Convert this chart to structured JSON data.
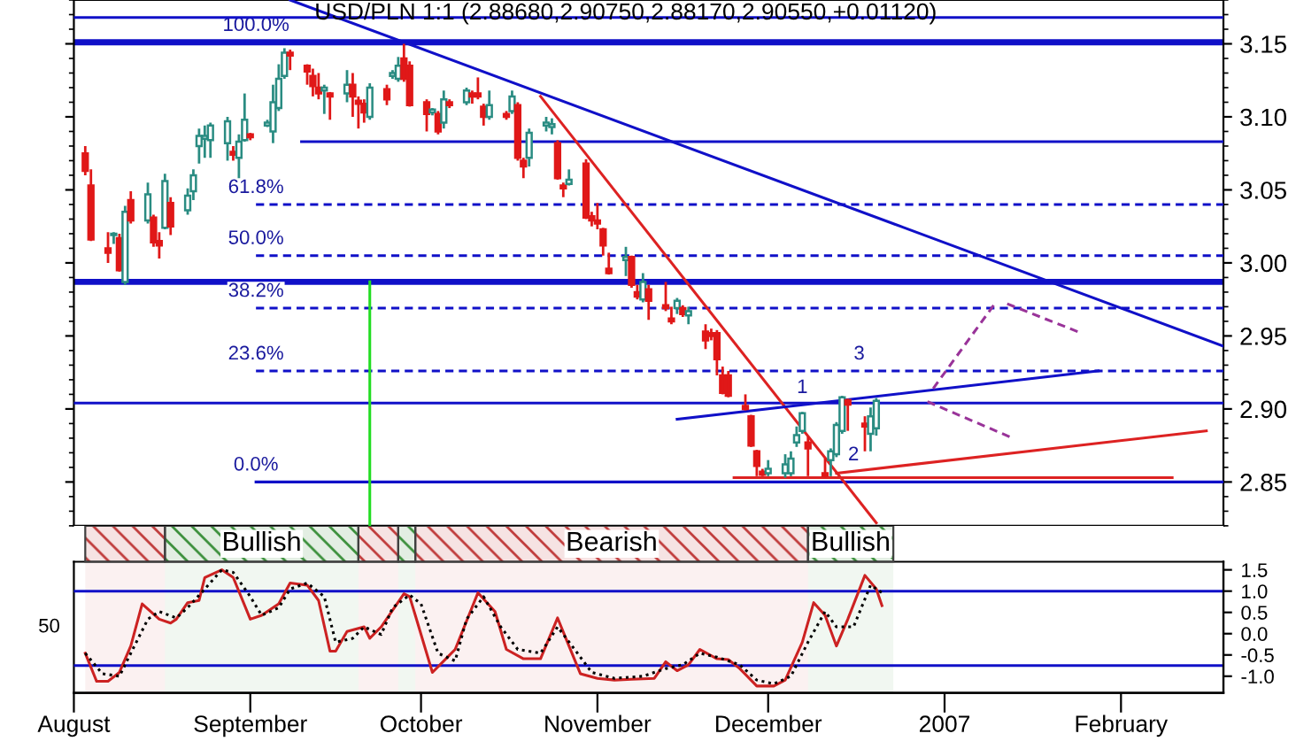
{
  "chart_data": [
    {
      "type": "candlestick",
      "title": "USD/PLN 1:1 (2.88680,2.90750,2.88170,2.90550,+0.01120)",
      "x": [
        "2006-08-03",
        "2006-08-04",
        "2006-08-07",
        "2006-08-08",
        "2006-08-09",
        "2006-08-10",
        "2006-08-11",
        "2006-08-14",
        "2006-08-15",
        "2006-08-16",
        "2006-08-17",
        "2006-08-18",
        "2006-08-21",
        "2006-08-22",
        "2006-08-23",
        "2006-08-24",
        "2006-08-25",
        "2006-08-28",
        "2006-08-29",
        "2006-08-30",
        "2006-08-31",
        "2006-09-01",
        "2006-09-04",
        "2006-09-05",
        "2006-09-06",
        "2006-09-07",
        "2006-09-08",
        "2006-09-11",
        "2006-09-12",
        "2006-09-13",
        "2006-09-14",
        "2006-09-15",
        "2006-09-18",
        "2006-09-19",
        "2006-09-20",
        "2006-09-21",
        "2006-09-22",
        "2006-09-25",
        "2006-09-26",
        "2006-09-27",
        "2006-09-28",
        "2006-09-29",
        "2006-10-02",
        "2006-10-03",
        "2006-10-04",
        "2006-10-05",
        "2006-10-06",
        "2006-10-09",
        "2006-10-10",
        "2006-10-11",
        "2006-10-12",
        "2006-10-13",
        "2006-10-16",
        "2006-10-17",
        "2006-10-18",
        "2006-10-19",
        "2006-10-20",
        "2006-10-23",
        "2006-10-24",
        "2006-10-25",
        "2006-10-26",
        "2006-10-27",
        "2006-10-30",
        "2006-10-31",
        "2006-11-01",
        "2006-11-02",
        "2006-11-03",
        "2006-11-06",
        "2006-11-07",
        "2006-11-08",
        "2006-11-09",
        "2006-11-10",
        "2006-11-13",
        "2006-11-14",
        "2006-11-15",
        "2006-11-16",
        "2006-11-17",
        "2006-11-20",
        "2006-11-21",
        "2006-11-22",
        "2006-11-23",
        "2006-11-24",
        "2006-11-27",
        "2006-11-28",
        "2006-11-29",
        "2006-11-30",
        "2006-12-01",
        "2006-12-04",
        "2006-12-05",
        "2006-12-06",
        "2006-12-07",
        "2006-12-08",
        "2006-12-11",
        "2006-12-12",
        "2006-12-13",
        "2006-12-14",
        "2006-12-15",
        "2006-12-18",
        "2006-12-19",
        "2006-12-20"
      ],
      "ohlc": [
        [
          3.075,
          3.08,
          3.06,
          3.063
        ],
        [
          3.053,
          3.064,
          3.015,
          3.016
        ],
        [
          3.01,
          3.021,
          3.0,
          3.007
        ],
        [
          3.019,
          3.021,
          3.013,
          3.02
        ],
        [
          3.017,
          3.02,
          2.994,
          2.995
        ],
        [
          2.987,
          3.039,
          2.985,
          3.035
        ],
        [
          3.043,
          3.049,
          3.027,
          3.029
        ],
        [
          3.029,
          3.055,
          3.027,
          3.047
        ],
        [
          3.031,
          3.033,
          3.011,
          3.014
        ],
        [
          3.015,
          3.021,
          3.003,
          3.012
        ],
        [
          3.024,
          3.061,
          3.023,
          3.056
        ],
        [
          3.041,
          3.045,
          3.019,
          3.025
        ],
        [
          3.036,
          3.051,
          3.033,
          3.046
        ],
        [
          3.049,
          3.064,
          3.043,
          3.06
        ],
        [
          3.08,
          3.092,
          3.068,
          3.087
        ],
        [
          3.085,
          3.094,
          3.072,
          3.087
        ],
        [
          3.084,
          3.096,
          3.072,
          3.094
        ],
        [
          3.082,
          3.1,
          3.07,
          3.097
        ],
        [
          3.076,
          3.08,
          3.07,
          3.074
        ],
        [
          3.072,
          3.088,
          3.058,
          3.083
        ],
        [
          3.084,
          3.116,
          3.083,
          3.098
        ],
        [
          3.088,
          3.089,
          3.084,
          3.086
        ],
        [
          3.094,
          3.098,
          3.093,
          3.096
        ],
        [
          3.09,
          3.122,
          3.082,
          3.11
        ],
        [
          3.106,
          3.136,
          3.104,
          3.126
        ],
        [
          3.128,
          3.147,
          3.126,
          3.144
        ],
        [
          3.144,
          3.146,
          3.132,
          3.142
        ],
        [
          3.135,
          3.136,
          3.122,
          3.131
        ],
        [
          3.128,
          3.133,
          3.114,
          3.121
        ],
        [
          3.12,
          3.13,
          3.112,
          3.116
        ],
        [
          3.118,
          3.122,
          3.102,
          3.12
        ],
        [
          3.116,
          3.117,
          3.098,
          3.114
        ],
        [
          3.116,
          3.132,
          3.11,
          3.122
        ],
        [
          3.122,
          3.13,
          3.1,
          3.114
        ],
        [
          3.111,
          3.114,
          3.092,
          3.109
        ],
        [
          3.109,
          3.112,
          3.096,
          3.103
        ],
        [
          3.1,
          3.123,
          3.098,
          3.12
        ],
        [
          3.119,
          3.122,
          3.108,
          3.112
        ],
        [
          3.128,
          3.132,
          3.126,
          3.13
        ],
        [
          3.126,
          3.141,
          3.124,
          3.135
        ],
        [
          3.14,
          3.15,
          3.124,
          3.126
        ],
        [
          3.135,
          3.138,
          3.107,
          3.108
        ],
        [
          3.11,
          3.112,
          3.09,
          3.102
        ],
        [
          3.103,
          3.106,
          3.101,
          3.105
        ],
        [
          3.102,
          3.104,
          3.088,
          3.09
        ],
        [
          3.096,
          3.118,
          3.092,
          3.112
        ],
        [
          3.11,
          3.112,
          3.106,
          3.108
        ],
        [
          3.11,
          3.12,
          3.108,
          3.118
        ],
        [
          3.116,
          3.118,
          3.109,
          3.114
        ],
        [
          3.116,
          3.127,
          3.112,
          3.114
        ],
        [
          3.107,
          3.109,
          3.094,
          3.1
        ],
        [
          3.1,
          3.118,
          3.098,
          3.108
        ],
        [
          3.102,
          3.104,
          3.098,
          3.1
        ],
        [
          3.104,
          3.118,
          3.102,
          3.114
        ],
        [
          3.108,
          3.11,
          3.07,
          3.072
        ],
        [
          3.07,
          3.072,
          3.058,
          3.066
        ],
        [
          3.072,
          3.092,
          3.066,
          3.089
        ],
        [
          3.094,
          3.1,
          3.09,
          3.096
        ],
        [
          3.093,
          3.099,
          3.088,
          3.095
        ],
        [
          3.082,
          3.084,
          3.057,
          3.058
        ],
        [
          3.053,
          3.055,
          3.045,
          3.051
        ],
        [
          3.054,
          3.064,
          3.053,
          3.057
        ],
        [
          3.068,
          3.071,
          3.03,
          3.031
        ],
        [
          3.032,
          3.035,
          3.025,
          3.029
        ],
        [
          3.029,
          3.041,
          3.023,
          3.027
        ],
        [
          3.023,
          3.024,
          3.005,
          3.012
        ],
        [
          2.996,
          3.007,
          2.992,
          2.993
        ],
        [
          3.002,
          3.011,
          2.991,
          3.004
        ],
        [
          3.004,
          3.005,
          2.983,
          2.985
        ],
        [
          2.98,
          2.985,
          2.975,
          2.977
        ],
        [
          2.975,
          2.993,
          2.973,
          2.987
        ],
        [
          2.982,
          2.985,
          2.961,
          2.974
        ],
        [
          2.971,
          2.987,
          2.967,
          2.969
        ],
        [
          2.962,
          2.97,
          2.958,
          2.96
        ],
        [
          2.969,
          2.976,
          2.965,
          2.974
        ],
        [
          2.969,
          2.971,
          2.963,
          2.965
        ],
        [
          2.964,
          2.97,
          2.958,
          2.967
        ],
        [
          2.953,
          2.958,
          2.941,
          2.947
        ],
        [
          2.952,
          2.955,
          2.947,
          2.95
        ],
        [
          2.952,
          2.954,
          2.923,
          2.934
        ],
        [
          2.923,
          2.929,
          2.91,
          2.911
        ],
        [
          2.923,
          2.926,
          2.908,
          2.909
        ],
        [
          2.902,
          2.91,
          2.899,
          2.9
        ],
        [
          2.895,
          2.896,
          2.874,
          2.875
        ],
        [
          2.871,
          2.872,
          2.854,
          2.861
        ],
        [
          2.857,
          2.859,
          2.854,
          2.855
        ],
        [
          2.856,
          2.865,
          2.854,
          2.859
        ],
        [
          2.856,
          2.869,
          2.853,
          2.862
        ],
        [
          2.856,
          2.871,
          2.854,
          2.866
        ],
        [
          2.877,
          2.888,
          2.874,
          2.882
        ],
        [
          2.885,
          2.898,
          2.883,
          2.897
        ],
        [
          2.877,
          2.881,
          2.854,
          2.873
        ],
        [
          2.856,
          2.866,
          2.853,
          2.854
        ],
        [
          2.865,
          2.873,
          2.854,
          2.871
        ],
        [
          2.869,
          2.891,
          2.867,
          2.889
        ],
        [
          2.885,
          2.909,
          2.883,
          2.908
        ],
        [
          2.906,
          2.907,
          2.885,
          2.903
        ],
        [
          2.89,
          2.895,
          2.871,
          2.888
        ],
        [
          2.883,
          2.901,
          2.871,
          2.895
        ],
        [
          2.8868,
          2.9075,
          2.8817,
          2.9055
        ]
      ],
      "colors": [
        "#e01818",
        "#e01818",
        "#e01818",
        "#2a8c82",
        "#e01818",
        "#2a8c82",
        "#e01818",
        "#2a8c82",
        "#e01818",
        "#e01818",
        "#2a8c82",
        "#e01818",
        "#2a8c82",
        "#2a8c82",
        "#2a8c82",
        "#2a8c82",
        "#2a8c82",
        "#2a8c82",
        "#e01818",
        "#2a8c82",
        "#2a8c82",
        "#e01818",
        "#2a8c82",
        "#2a8c82",
        "#2a8c82",
        "#2a8c82",
        "#e01818",
        "#e01818",
        "#e01818",
        "#e01818",
        "#2a8c82",
        "#e01818",
        "#2a8c82",
        "#e01818",
        "#e01818",
        "#e01818",
        "#2a8c82",
        "#e01818",
        "#2a8c82",
        "#2a8c82",
        "#e01818",
        "#e01818",
        "#e01818",
        "#2a8c82",
        "#e01818",
        "#2a8c82",
        "#e01818",
        "#2a8c82",
        "#e01818",
        "#e01818",
        "#e01818",
        "#2a8c82",
        "#e01818",
        "#2a8c82",
        "#e01818",
        "#e01818",
        "#2a8c82",
        "#2a8c82",
        "#2a8c82",
        "#e01818",
        "#e01818",
        "#2a8c82",
        "#e01818",
        "#e01818",
        "#e01818",
        "#e01818",
        "#e01818",
        "#2a8c82",
        "#e01818",
        "#e01818",
        "#2a8c82",
        "#e01818",
        "#e01818",
        "#e01818",
        "#2a8c82",
        "#e01818",
        "#2a8c82",
        "#e01818",
        "#e01818",
        "#e01818",
        "#e01818",
        "#e01818",
        "#e01818",
        "#e01818",
        "#e01818",
        "#e01818",
        "#2a8c82",
        "#2a8c82",
        "#2a8c82",
        "#2a8c82",
        "#2a8c82",
        "#e01818",
        "#e01818",
        "#2a8c82",
        "#2a8c82",
        "#2a8c82",
        "#e01818",
        "#e01818",
        "#2a8c82",
        "#2a8c82"
      ],
      "series": [
        {
          "type": "line",
          "x": [
            "2006-08-01",
            "2007-02-19"
          ],
          "values": [
            3.168,
            3.168
          ],
          "color": "#1010c8"
        },
        {
          "type": "line",
          "x": [
            "2006-08-01",
            "2007-02-19"
          ],
          "values": [
            2.904,
            2.904
          ],
          "color": "#1010c8"
        },
        {
          "type": "line",
          "x": [
            "2006-09-10",
            "2007-02-19"
          ],
          "values": [
            3.083,
            3.083
          ],
          "color": "#1010c8"
        },
        {
          "type": "line",
          "x": [
            "2006-09-02",
            "2007-02-19"
          ],
          "values": [
            3.04,
            3.04
          ],
          "color": "#1010c8",
          "line_style": "dashed"
        },
        {
          "type": "line",
          "x": [
            "2006-09-02",
            "2007-02-19"
          ],
          "values": [
            3.005,
            3.005
          ],
          "color": "#1010c8",
          "line_style": "dashed"
        },
        {
          "type": "line",
          "x": [
            "2006-09-02",
            "2007-02-19"
          ],
          "values": [
            2.969,
            2.969
          ],
          "color": "#1010c8",
          "line_style": "dashed"
        },
        {
          "type": "line",
          "x": [
            "2006-09-02",
            "2007-02-19"
          ],
          "values": [
            2.926,
            2.926
          ],
          "color": "#1010c8",
          "line_style": "dashed"
        },
        {
          "type": "line",
          "x": [
            "2006-09-02",
            "2007-02-19"
          ],
          "values": [
            2.85,
            2.85
          ],
          "color": "#1010c8"
        },
        {
          "type": "line",
          "x": [
            "2006-09-08",
            "2007-02-19"
          ],
          "values": [
            3.18,
            2.943
          ],
          "color": "#1010c8"
        },
        {
          "type": "line",
          "x": [
            "2006-10-22",
            "2006-12-20"
          ],
          "values": [
            3.114,
            2.822
          ],
          "color": "#dd2222"
        },
        {
          "type": "line",
          "x": [
            "2006-11-15",
            "2007-01-28"
          ],
          "values": [
            2.893,
            2.926
          ],
          "color": "#1010c8"
        },
        {
          "type": "line",
          "x": [
            "2006-12-13",
            "2007-02-16"
          ],
          "values": [
            2.856,
            2.885
          ],
          "color": "#dd2222"
        },
        {
          "type": "line",
          "x": [
            "2006-11-25",
            "2007-02-10"
          ],
          "values": [
            2.853,
            2.853
          ],
          "color": "#dd2222"
        },
        {
          "type": "line",
          "x": [
            "2006-09-22",
            "2006-09-22"
          ],
          "values": [
            2.987,
            2.82
          ],
          "color": "#22dd22"
        },
        {
          "type": "line",
          "x": [
            "2006-12-30",
            "2007-01-10"
          ],
          "values": [
            2.914,
            2.973
          ],
          "color": "#993399",
          "line_style": "dashed"
        },
        {
          "type": "line",
          "x": [
            "2007-01-12",
            "2007-01-25"
          ],
          "values": [
            2.972,
            2.952
          ],
          "color": "#993399",
          "line_style": "dashed"
        },
        {
          "type": "line",
          "x": [
            "2006-12-29",
            "2007-01-13"
          ],
          "values": [
            2.905,
            2.88
          ],
          "color": "#993399",
          "line_style": "dashed"
        }
      ],
      "ref_lines": [
        {
          "axis": "y",
          "value": 3.151,
          "color": "#1010c8"
        },
        {
          "axis": "y",
          "value": 2.987,
          "color": "#1010c8"
        }
      ],
      "annotations": [
        {
          "text": "100.0%",
          "x": "2006-09-02",
          "y": 3.151
        },
        {
          "text": "61.8%",
          "x": "2006-09-02",
          "y": 3.04
        },
        {
          "text": "50.0%",
          "x": "2006-09-02",
          "y": 3.005
        },
        {
          "text": "38.2%",
          "x": "2006-09-02",
          "y": 2.969
        },
        {
          "text": "23.6%",
          "x": "2006-09-02",
          "y": 2.926
        },
        {
          "text": "0.0%",
          "x": "2006-09-02",
          "y": 2.85
        },
        {
          "text": "1",
          "x": "2006-12-07",
          "y": 2.903
        },
        {
          "text": "2",
          "x": "2006-12-16",
          "y": 2.857
        },
        {
          "text": "3",
          "x": "2006-12-17",
          "y": 2.926
        }
      ],
      "xlim": [
        "2006-08-01",
        "2007-02-19"
      ],
      "ylim": [
        2.82,
        3.18
      ],
      "yticks": [
        2.85,
        {
          "value": 2.9,
          "label": "2.90"
        },
        2.95,
        {
          "value": 3.0,
          "label": "3.00"
        },
        3.05,
        {
          "value": 3.1,
          "label": "3.10"
        },
        3.15
      ],
      "tick_labels": "y"
    },
    {
      "type": "line",
      "xlim": [
        "2006-08-01",
        "2007-02-19"
      ],
      "annotations": [
        "50"
      ],
      "bands": [
        {
          "axis": "x",
          "from": "2006-08-03",
          "to": "2006-08-17",
          "color": "#c03c3c"
        },
        {
          "axis": "x",
          "from": "2006-08-17",
          "to": "2006-09-20",
          "label": "Bullish",
          "color": "#3c903c"
        },
        {
          "axis": "x",
          "from": "2006-09-20",
          "to": "2006-09-27",
          "color": "#c03c3c"
        },
        {
          "axis": "x",
          "from": "2006-09-27",
          "to": "2006-09-30",
          "color": "#3c903c"
        },
        {
          "axis": "x",
          "from": "2006-09-30",
          "to": "2006-12-08",
          "label": "Bearish",
          "color": "#c03c3c"
        },
        {
          "axis": "x",
          "from": "2006-12-08",
          "to": "2006-12-23",
          "label": "Bullish",
          "color": "#3c903c"
        }
      ],
      "xticks": [
        {
          "value": "2006-08-01",
          "label": "August"
        },
        {
          "value": "2006-09-01",
          "label": "September"
        },
        {
          "value": "2006-10-01",
          "label": "October"
        },
        {
          "value": "2006-11-01",
          "label": "November"
        },
        {
          "value": "2006-12-01",
          "label": "December"
        },
        {
          "value": "2007-01-01",
          "label": "2007"
        },
        {
          "value": "2007-02-01",
          "label": "February"
        }
      ],
      "y2lim": [
        -1.39,
        1.69
      ],
      "y2ticks": [
        {
          "value": -1.0,
          "label": "-1.0"
        },
        {
          "value": -0.5,
          "label": "-0.5"
        },
        {
          "value": 0.0,
          "label": "0.0"
        },
        {
          "value": 0.5,
          "label": "0.5"
        },
        {
          "value": 1.0,
          "label": "1.0"
        },
        {
          "value": 1.5,
          "label": "1.5"
        }
      ],
      "ref_lines": [
        {
          "axis": "y2",
          "value": 1.0,
          "color": "#1010c8"
        },
        {
          "axis": "y2",
          "value": -0.75,
          "color": "#1010c8"
        }
      ],
      "series": [
        {
          "axis": "y2",
          "color": "#cc2222",
          "line_style": "solid",
          "x": [
            "2006-08-03",
            "2006-08-05",
            "2006-08-07",
            "2006-08-09",
            "2006-08-11",
            "2006-08-13",
            "2006-08-16",
            "2006-08-18",
            "2006-08-19",
            "2006-08-21",
            "2006-08-23",
            "2006-08-24",
            "2006-08-27",
            "2006-08-29",
            "2006-09-01",
            "2006-09-03",
            "2006-09-06",
            "2006-09-08",
            "2006-09-11",
            "2006-09-13",
            "2006-09-15",
            "2006-09-16",
            "2006-09-18",
            "2006-09-21",
            "2006-09-22",
            "2006-09-24",
            "2006-09-28",
            "2006-09-29",
            "2006-09-30",
            "2006-10-03",
            "2006-10-07",
            "2006-10-11",
            "2006-10-14",
            "2006-10-16",
            "2006-10-19",
            "2006-10-22",
            "2006-10-25",
            "2006-10-27",
            "2006-10-29",
            "2006-11-01",
            "2006-11-04",
            "2006-11-07",
            "2006-11-11",
            "2006-11-13",
            "2006-11-15",
            "2006-11-17",
            "2006-11-19",
            "2006-11-22",
            "2006-11-24",
            "2006-11-26",
            "2006-11-29",
            "2006-12-02",
            "2006-12-04",
            "2006-12-07",
            "2006-12-09",
            "2006-12-11",
            "2006-12-13",
            "2006-12-15",
            "2006-12-18",
            "2006-12-20",
            "2006-12-21"
          ],
          "values": [
            -0.46,
            -1.12,
            -1.12,
            -0.91,
            -0.29,
            0.7,
            0.34,
            0.25,
            0.34,
            0.73,
            0.78,
            1.32,
            1.5,
            1.32,
            0.34,
            0.43,
            0.7,
            1.19,
            1.14,
            0.78,
            -0.41,
            -0.41,
            0.05,
            0.16,
            -0.11,
            0.16,
            0.94,
            0.87,
            0.43,
            -0.91,
            -0.37,
            0.96,
            0.52,
            -0.37,
            -0.59,
            -0.59,
            0.37,
            -0.29,
            -0.94,
            -1.05,
            -1.09,
            -1.07,
            -1.05,
            -0.66,
            -0.87,
            -0.73,
            -0.37,
            -0.59,
            -0.61,
            -0.82,
            -1.23,
            -1.23,
            -1.09,
            -0.2,
            0.73,
            0.43,
            -0.29,
            0.34,
            1.37,
            1.05,
            0.66
          ]
        },
        {
          "axis": "y2",
          "color": "#000000",
          "line_style": "dotted",
          "x": [
            "2006-08-03",
            "2006-08-06",
            "2006-08-09",
            "2006-08-11",
            "2006-08-14",
            "2006-08-16",
            "2006-08-19",
            "2006-08-21",
            "2006-08-24",
            "2006-08-27",
            "2006-08-29",
            "2006-09-01",
            "2006-09-03",
            "2006-09-06",
            "2006-09-08",
            "2006-09-11",
            "2006-09-14",
            "2006-09-16",
            "2006-09-19",
            "2006-09-21",
            "2006-09-24",
            "2006-09-26",
            "2006-09-29",
            "2006-10-01",
            "2006-10-04",
            "2006-10-07",
            "2006-10-09",
            "2006-10-12",
            "2006-10-15",
            "2006-10-18",
            "2006-10-22",
            "2006-10-25",
            "2006-10-28",
            "2006-10-31",
            "2006-11-04",
            "2006-11-09",
            "2006-11-13",
            "2006-11-16",
            "2006-11-19",
            "2006-11-22",
            "2006-11-26",
            "2006-11-29",
            "2006-12-02",
            "2006-12-05",
            "2006-12-08",
            "2006-12-11",
            "2006-12-13",
            "2006-12-16",
            "2006-12-19",
            "2006-12-21"
          ],
          "values": [
            -0.46,
            -0.94,
            -1.0,
            -0.46,
            0.34,
            0.52,
            0.37,
            0.61,
            1.05,
            1.5,
            1.44,
            0.87,
            0.43,
            0.61,
            1.05,
            1.19,
            0.87,
            -0.2,
            -0.11,
            0.16,
            -0.02,
            0.61,
            0.91,
            0.7,
            -0.46,
            -0.64,
            0.34,
            0.87,
            0.16,
            -0.37,
            -0.46,
            0.16,
            -0.37,
            -0.91,
            -1.05,
            -1.0,
            -0.82,
            -0.73,
            -0.46,
            -0.55,
            -0.73,
            -1.09,
            -1.18,
            -1.0,
            -0.2,
            0.52,
            0.16,
            0.16,
            1.14,
            0.96
          ]
        }
      ]
    }
  ]
}
